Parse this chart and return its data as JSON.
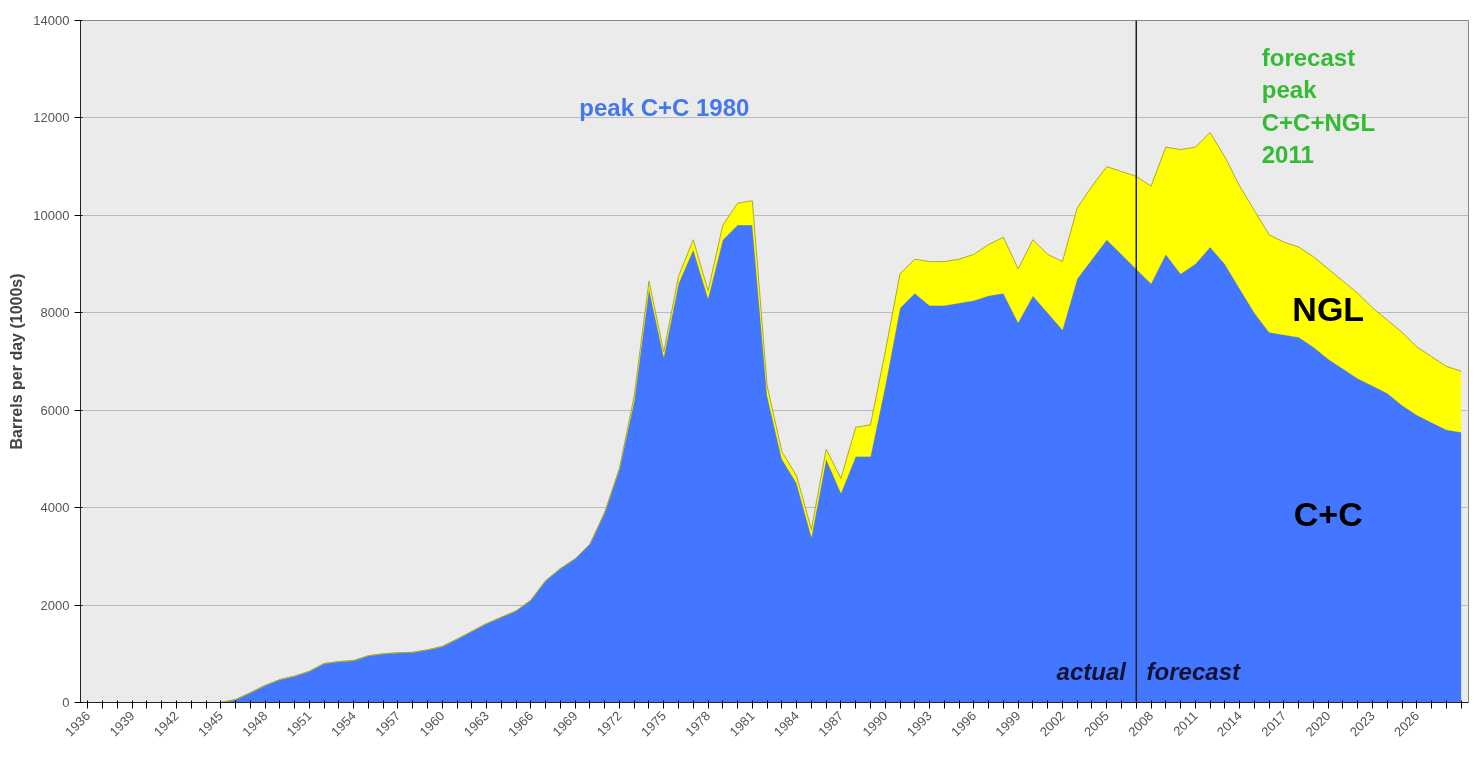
{
  "chart_data": {
    "type": "area",
    "stacked": true,
    "ylabel": "Barrels per day (1000s)",
    "x": [
      1936,
      1937,
      1938,
      1939,
      1940,
      1941,
      1942,
      1943,
      1944,
      1945,
      1946,
      1947,
      1948,
      1949,
      1950,
      1951,
      1952,
      1953,
      1954,
      1955,
      1956,
      1957,
      1958,
      1959,
      1960,
      1961,
      1962,
      1963,
      1964,
      1965,
      1966,
      1967,
      1968,
      1969,
      1970,
      1971,
      1972,
      1973,
      1974,
      1975,
      1976,
      1977,
      1978,
      1979,
      1980,
      1981,
      1982,
      1983,
      1984,
      1985,
      1986,
      1987,
      1988,
      1989,
      1990,
      1991,
      1992,
      1993,
      1994,
      1995,
      1996,
      1997,
      1998,
      1999,
      2000,
      2001,
      2002,
      2003,
      2004,
      2005,
      2006,
      2007,
      2008,
      2009,
      2010,
      2011,
      2012,
      2013,
      2014,
      2015,
      2016,
      2017,
      2018,
      2019,
      2020,
      2021,
      2022,
      2023,
      2024,
      2025,
      2026,
      2027,
      2028,
      2029
    ],
    "series": [
      {
        "name": "C+C",
        "color": "#4477ff",
        "values": [
          0,
          0,
          0,
          0,
          0,
          0,
          0,
          0,
          0,
          0,
          60,
          200,
          350,
          470,
          540,
          640,
          800,
          840,
          860,
          960,
          1000,
          1020,
          1030,
          1080,
          1150,
          1300,
          1460,
          1620,
          1750,
          1880,
          2100,
          2500,
          2750,
          2950,
          3250,
          3900,
          4800,
          6200,
          8500,
          7100,
          8600,
          9300,
          8300,
          9500,
          9800,
          9800,
          6300,
          5000,
          4500,
          3400,
          5000,
          4300,
          5050,
          5050,
          6500,
          8100,
          8400,
          8150,
          8150,
          8200,
          8250,
          8350,
          8400,
          7800,
          8350,
          8000,
          7650,
          8700,
          9100,
          9500,
          9200,
          8900,
          8600,
          9200,
          8800,
          9000,
          9350,
          9000,
          8500,
          8000,
          7600,
          7550,
          7500,
          7300,
          7050,
          6850,
          6650,
          6500,
          6350,
          6100,
          5900,
          5750,
          5600,
          5550
        ]
      },
      {
        "name": "NGL",
        "color": "#ffff00",
        "values": [
          0,
          0,
          0,
          0,
          0,
          0,
          0,
          0,
          0,
          0,
          0,
          0,
          0,
          0,
          0,
          0,
          0,
          0,
          0,
          0,
          0,
          0,
          0,
          0,
          0,
          0,
          0,
          0,
          0,
          0,
          0,
          0,
          0,
          0,
          0,
          0,
          0,
          100,
          150,
          100,
          150,
          200,
          150,
          300,
          450,
          500,
          200,
          150,
          150,
          150,
          200,
          300,
          600,
          650,
          700,
          700,
          700,
          900,
          900,
          900,
          950,
          1050,
          1150,
          1100,
          1150,
          1200,
          1400,
          1450,
          1500,
          1500,
          1700,
          1900,
          2000,
          2200,
          2550,
          2400,
          2350,
          2200,
          2100,
          2100,
          2000,
          1900,
          1850,
          1850,
          1850,
          1800,
          1750,
          1600,
          1500,
          1500,
          1400,
          1350,
          1300,
          1250
        ]
      }
    ],
    "xlim": [
      1935.5,
      2029.5
    ],
    "xticks": [
      1936,
      {
        "value": 1937,
        "label": null
      },
      {
        "value": 1938,
        "label": null
      },
      1939,
      {
        "value": 1940,
        "label": null
      },
      {
        "value": 1941,
        "label": null
      },
      1942,
      {
        "value": 1943,
        "label": null
      },
      {
        "value": 1944,
        "label": null
      },
      1945,
      {
        "value": 1946,
        "label": null
      },
      {
        "value": 1947,
        "label": null
      },
      1948,
      {
        "value": 1949,
        "label": null
      },
      {
        "value": 1950,
        "label": null
      },
      1951,
      {
        "value": 1952,
        "label": null
      },
      {
        "value": 1953,
        "label": null
      },
      1954,
      {
        "value": 1955,
        "label": null
      },
      {
        "value": 1956,
        "label": null
      },
      1957,
      {
        "value": 1958,
        "label": null
      },
      {
        "value": 1959,
        "label": null
      },
      1960,
      {
        "value": 1961,
        "label": null
      },
      {
        "value": 1962,
        "label": null
      },
      1963,
      {
        "value": 1964,
        "label": null
      },
      {
        "value": 1965,
        "label": null
      },
      1966,
      {
        "value": 1967,
        "label": null
      },
      {
        "value": 1968,
        "label": null
      },
      1969,
      {
        "value": 1970,
        "label": null
      },
      {
        "value": 1971,
        "label": null
      },
      1972,
      {
        "value": 1973,
        "label": null
      },
      {
        "value": 1974,
        "label": null
      },
      1975,
      {
        "value": 1976,
        "label": null
      },
      {
        "value": 1977,
        "label": null
      },
      1978,
      {
        "value": 1979,
        "label": null
      },
      {
        "value": 1980,
        "label": null
      },
      1981,
      {
        "value": 1982,
        "label": null
      },
      {
        "value": 1983,
        "label": null
      },
      1984,
      {
        "value": 1985,
        "label": null
      },
      {
        "value": 1986,
        "label": null
      },
      1987,
      {
        "value": 1988,
        "label": null
      },
      {
        "value": 1989,
        "label": null
      },
      1990,
      {
        "value": 1991,
        "label": null
      },
      {
        "value": 1992,
        "label": null
      },
      1993,
      {
        "value": 1994,
        "label": null
      },
      {
        "value": 1995,
        "label": null
      },
      1996,
      {
        "value": 1997,
        "label": null
      },
      {
        "value": 1998,
        "label": null
      },
      1999,
      {
        "value": 2000,
        "label": null
      },
      {
        "value": 2001,
        "label": null
      },
      2002,
      {
        "value": 2003,
        "label": null
      },
      {
        "value": 2004,
        "label": null
      },
      2005,
      {
        "value": 2006,
        "label": null
      },
      {
        "value": 2007,
        "label": null
      },
      2008,
      {
        "value": 2009,
        "label": null
      },
      {
        "value": 2010,
        "label": null
      },
      2011,
      {
        "value": 2012,
        "label": null
      },
      {
        "value": 2013,
        "label": null
      },
      2014,
      {
        "value": 2015,
        "label": null
      },
      {
        "value": 2016,
        "label": null
      },
      2017,
      {
        "value": 2018,
        "label": null
      },
      {
        "value": 2019,
        "label": null
      },
      2020,
      {
        "value": 2021,
        "label": null
      },
      {
        "value": 2022,
        "label": null
      },
      2023,
      {
        "value": 2024,
        "label": null
      },
      {
        "value": 2025,
        "label": null
      },
      2026,
      {
        "value": 2027,
        "label": null
      },
      {
        "value": 2028,
        "label": null
      },
      {
        "value": 2029,
        "label": null
      }
    ],
    "ylim": [
      0,
      14000
    ],
    "yticks": [
      0,
      2000,
      4000,
      6000,
      8000,
      10000,
      12000,
      14000
    ],
    "grid": "y",
    "ref_lines": [
      {
        "axis": "x",
        "value": 2007,
        "color": "#222222"
      }
    ],
    "annotations": [
      "peak C+C 1980",
      "forecast\npeak\nC+C+NGL\n2011",
      "actual",
      "forecast"
    ]
  }
}
